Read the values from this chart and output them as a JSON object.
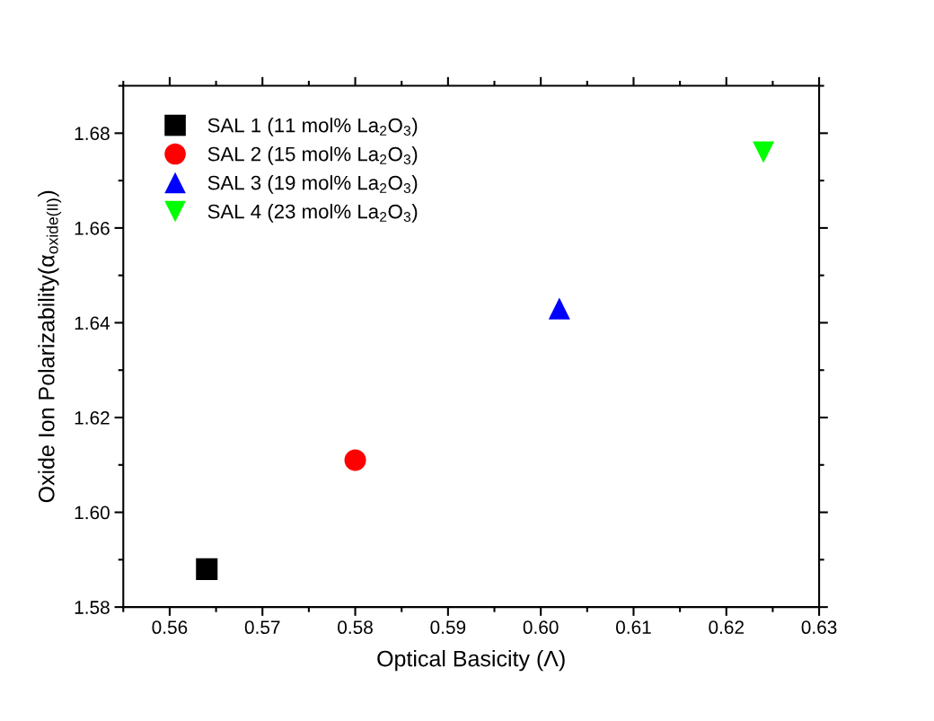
{
  "chart_data": {
    "type": "scatter",
    "xlabel": "Optical Basicity (Λ)",
    "ylabel": "Oxide Ion Polarizability(α$_{oxide(II)}$)",
    "xlim": [
      0.555,
      0.63
    ],
    "xticks": [
      {
        "value": 0.56,
        "label": "0.56"
      },
      {
        "value": 0.57,
        "label": "0.57"
      },
      {
        "value": 0.58,
        "label": "0.58"
      },
      {
        "value": 0.59,
        "label": "0.59"
      },
      {
        "value": 0.6,
        "label": "0.60"
      },
      {
        "value": 0.61,
        "label": "0.61"
      },
      {
        "value": 0.62,
        "label": "0.62"
      },
      {
        "value": 0.63,
        "label": "0.63"
      }
    ],
    "ylim": [
      1.58,
      1.69
    ],
    "yticks": [
      {
        "value": 1.58,
        "label": "1.58"
      },
      {
        "value": 1.6,
        "label": "1.60"
      },
      {
        "value": 1.62,
        "label": "1.62"
      },
      {
        "value": 1.64,
        "label": "1.64"
      },
      {
        "value": 1.66,
        "label": "1.66"
      },
      {
        "value": 1.68,
        "label": "1.68"
      }
    ],
    "grid": false,
    "legend": "top left",
    "series": [
      {
        "name": "SAL 1 (11 mol% La$_{2}$O$_{3}$)",
        "color": "#000000",
        "marker": "square",
        "x": [
          0.564
        ],
        "values": [
          1.588
        ]
      },
      {
        "name": "SAL 2 (15 mol% La$_{2}$O$_{3}$)",
        "color": "#ff0000",
        "marker": "circle",
        "x": [
          0.58
        ],
        "values": [
          1.611
        ]
      },
      {
        "name": "SAL 3 (19 mol% La$_{2}$O$_{3}$)",
        "color": "#0000ff",
        "marker": "triangle",
        "x": [
          0.602
        ],
        "values": [
          1.643
        ]
      },
      {
        "name": "SAL 4 (23 mol% La$_{2}$O$_{3}$)",
        "color": "#00ff00",
        "marker": "triangle-down",
        "x": [
          0.624
        ],
        "values": [
          1.676
        ]
      }
    ]
  }
}
